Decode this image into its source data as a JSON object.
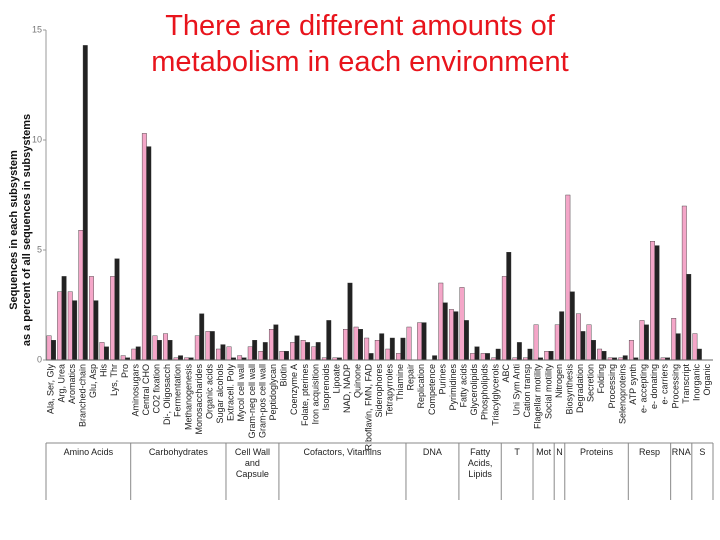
{
  "chart_data": {
    "type": "bar",
    "title": "There are different amounts of metabolism in each environment",
    "ylabel": [
      "Sequences in each subsystem",
      "as a percent of all sequences in subsystems"
    ],
    "ylim": [
      0,
      15
    ],
    "yticks": [
      0,
      5,
      10,
      15
    ],
    "categories": [
      "Ala, Ser, Gly",
      "Arg, Urea",
      "Aromatics",
      "Branched-chain",
      "Glu, Asp",
      "His",
      "Lys, Thr",
      "Pro",
      "Aminosugars",
      "Central CHO",
      "CO2 fixation",
      "Di-, Oligosacch",
      "Fermentation",
      "Methanogenesis",
      "Monosaccharides",
      "Organic acids",
      "Sugar alcohols",
      "Extracell. Poly",
      "Mycol cell wall",
      "Gram-neg cell wall",
      "Gram-pos cell wall",
      "Peptidoglycan",
      "Biotin",
      "Coenzyme A",
      "Folate, pterines",
      "Iron acquisition",
      "Isoprenoids",
      "Lipoate",
      "NAD, NADP",
      "Quinone",
      "Riboflavin, FMN, FAD",
      "Siderophores",
      "Tetrapyrroles",
      "Thiamine",
      "Repair",
      "Replication",
      "Competence",
      "Purines",
      "Pyrimidines",
      "Fatty acids",
      "Glycerolipids",
      "Phospholipids",
      "Triacylglycerols",
      "ABC",
      "Uni Sym Anti",
      "Cation transp",
      "Flagellar motility",
      "Social motility",
      "Nitrogen",
      "Biosynthesis",
      "Degradation",
      "Secretion",
      "Folding",
      "Processing",
      "Selenoproteins",
      "ATP synth",
      "e- accepting",
      "e- donating",
      "e- carriers",
      "Processing",
      "Transcript",
      "Inorganic",
      "Organic"
    ],
    "series": [
      {
        "color": "#f4a6c8",
        "values": [
          1.1,
          3.1,
          3.1,
          5.9,
          3.8,
          0.8,
          3.8,
          0.2,
          0.5,
          10.3,
          1.1,
          1.2,
          0.1,
          0.1,
          1.1,
          1.3,
          0.5,
          0.6,
          0.2,
          0.6,
          0.4,
          1.4,
          0.4,
          0.8,
          0.9,
          0.6,
          0.1,
          0.1,
          1.4,
          1.5,
          1.0,
          0.9,
          0.5,
          0.3,
          1.5,
          1.7,
          0.0,
          3.5,
          2.3,
          3.3,
          0.3,
          0.3,
          0.1,
          3.8,
          0.1,
          0.1,
          1.6,
          0.4,
          1.6,
          7.5,
          2.1,
          1.6,
          0.5,
          0.1,
          0.1,
          0.9,
          1.8,
          5.4,
          0.1,
          1.9,
          7.0,
          1.2,
          0.0
        ]
      },
      {
        "color": "#222222",
        "values": [
          0.9,
          3.8,
          2.7,
          14.3,
          2.7,
          0.6,
          4.6,
          0.1,
          0.6,
          9.7,
          0.9,
          0.9,
          0.2,
          0.1,
          2.1,
          1.3,
          0.7,
          0.1,
          0.1,
          0.9,
          0.8,
          1.6,
          0.4,
          1.1,
          0.8,
          0.8,
          1.8,
          0.1,
          3.5,
          1.4,
          0.3,
          1.2,
          1.0,
          1.0,
          0.0,
          1.7,
          0.2,
          2.6,
          2.2,
          1.8,
          0.6,
          0.3,
          0.5,
          4.9,
          0.8,
          0.5,
          0.1,
          0.4,
          2.2,
          3.1,
          1.3,
          0.9,
          0.4,
          0.1,
          0.2,
          0.1,
          1.6,
          5.2,
          0.1,
          1.2,
          3.9,
          0.5,
          0.0
        ]
      }
    ],
    "groups": [
      {
        "label": "Amino Acids",
        "start": 0,
        "end": 7
      },
      {
        "label": "Carbohydrates",
        "start": 8,
        "end": 16
      },
      {
        "label": "Cell Wall and Capsule",
        "start": 17,
        "end": 21
      },
      {
        "label": "Cofactors, Vitamins",
        "start": 22,
        "end": 33
      },
      {
        "label": "DNA",
        "start": 34,
        "end": 38
      },
      {
        "label": "Fatty Acids, Lipids",
        "start": 39,
        "end": 42
      },
      {
        "label": "T",
        "start": 43,
        "end": 45
      },
      {
        "label": "Mot",
        "start": 46,
        "end": 47
      },
      {
        "label": "N",
        "start": 48,
        "end": 48
      },
      {
        "label": "Proteins",
        "start": 49,
        "end": 54
      },
      {
        "label": "Resp",
        "start": 55,
        "end": 58
      },
      {
        "label": "RNA",
        "start": 59,
        "end": 60
      },
      {
        "label": "S",
        "start": 61,
        "end": 62
      }
    ]
  }
}
